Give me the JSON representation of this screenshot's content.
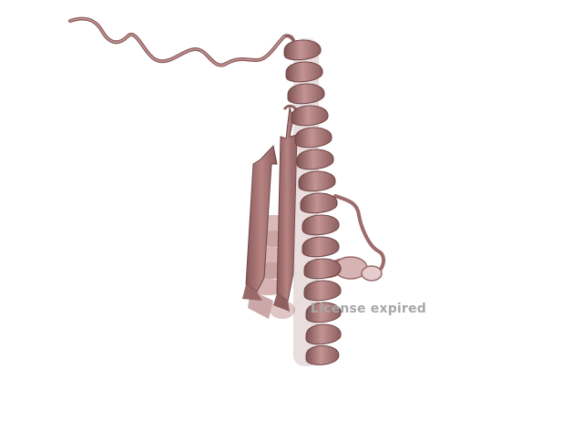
{
  "scene": {
    "subject": "protein-cartoon",
    "colors": {
      "background": "#ffffff",
      "ribbon": "#b07c7c",
      "ribbon_light": "#d3a9a9",
      "ribbon_dark": "#7e5252",
      "strand_fill": "#a67070",
      "watermark": "#a7a7a7"
    }
  },
  "watermark": {
    "text": "License expired"
  }
}
